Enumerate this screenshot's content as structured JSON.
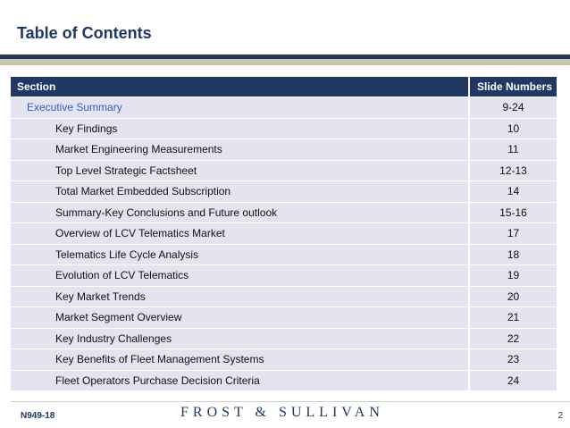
{
  "title": "Table of Contents",
  "table": {
    "header_section": "Section",
    "header_slides": "Slide Numbers",
    "rows": [
      {
        "section": "Executive Summary",
        "slides": "9-24",
        "level": "main"
      },
      {
        "section": "Key Findings",
        "slides": "10",
        "level": "sub"
      },
      {
        "section": "Market Engineering Measurements",
        "slides": "11",
        "level": "sub"
      },
      {
        "section": "Top Level Strategic Factsheet",
        "slides": "12-13",
        "level": "sub"
      },
      {
        "section": "Total Market Embedded Subscription",
        "slides": "14",
        "level": "sub"
      },
      {
        "section": "Summary-Key Conclusions and Future outlook",
        "slides": "15-16",
        "level": "sub"
      },
      {
        "section": "Overview of LCV Telematics Market",
        "slides": "17",
        "level": "sub"
      },
      {
        "section": "Telematics Life Cycle Analysis",
        "slides": "18",
        "level": "sub"
      },
      {
        "section": "Evolution of LCV Telematics",
        "slides": "19",
        "level": "sub"
      },
      {
        "section": "Key Market Trends",
        "slides": "20",
        "level": "sub"
      },
      {
        "section": "Market Segment Overview",
        "slides": "21",
        "level": "sub"
      },
      {
        "section": "Key Industry Challenges",
        "slides": "22",
        "level": "sub"
      },
      {
        "section": "Key Benefits of Fleet Management Systems",
        "slides": "23",
        "level": "sub"
      },
      {
        "section": "Fleet Operators Purchase Decision Criteria",
        "slides": "24",
        "level": "sub"
      }
    ]
  },
  "footer": {
    "code": "N949-18",
    "brand": "FROST & SULLIVAN",
    "page": "2"
  },
  "colors": {
    "navy": "#1f3864",
    "row_bg": "#e3e4ef",
    "link": "#2f5fc4",
    "khaki": "#c7c6a9"
  }
}
